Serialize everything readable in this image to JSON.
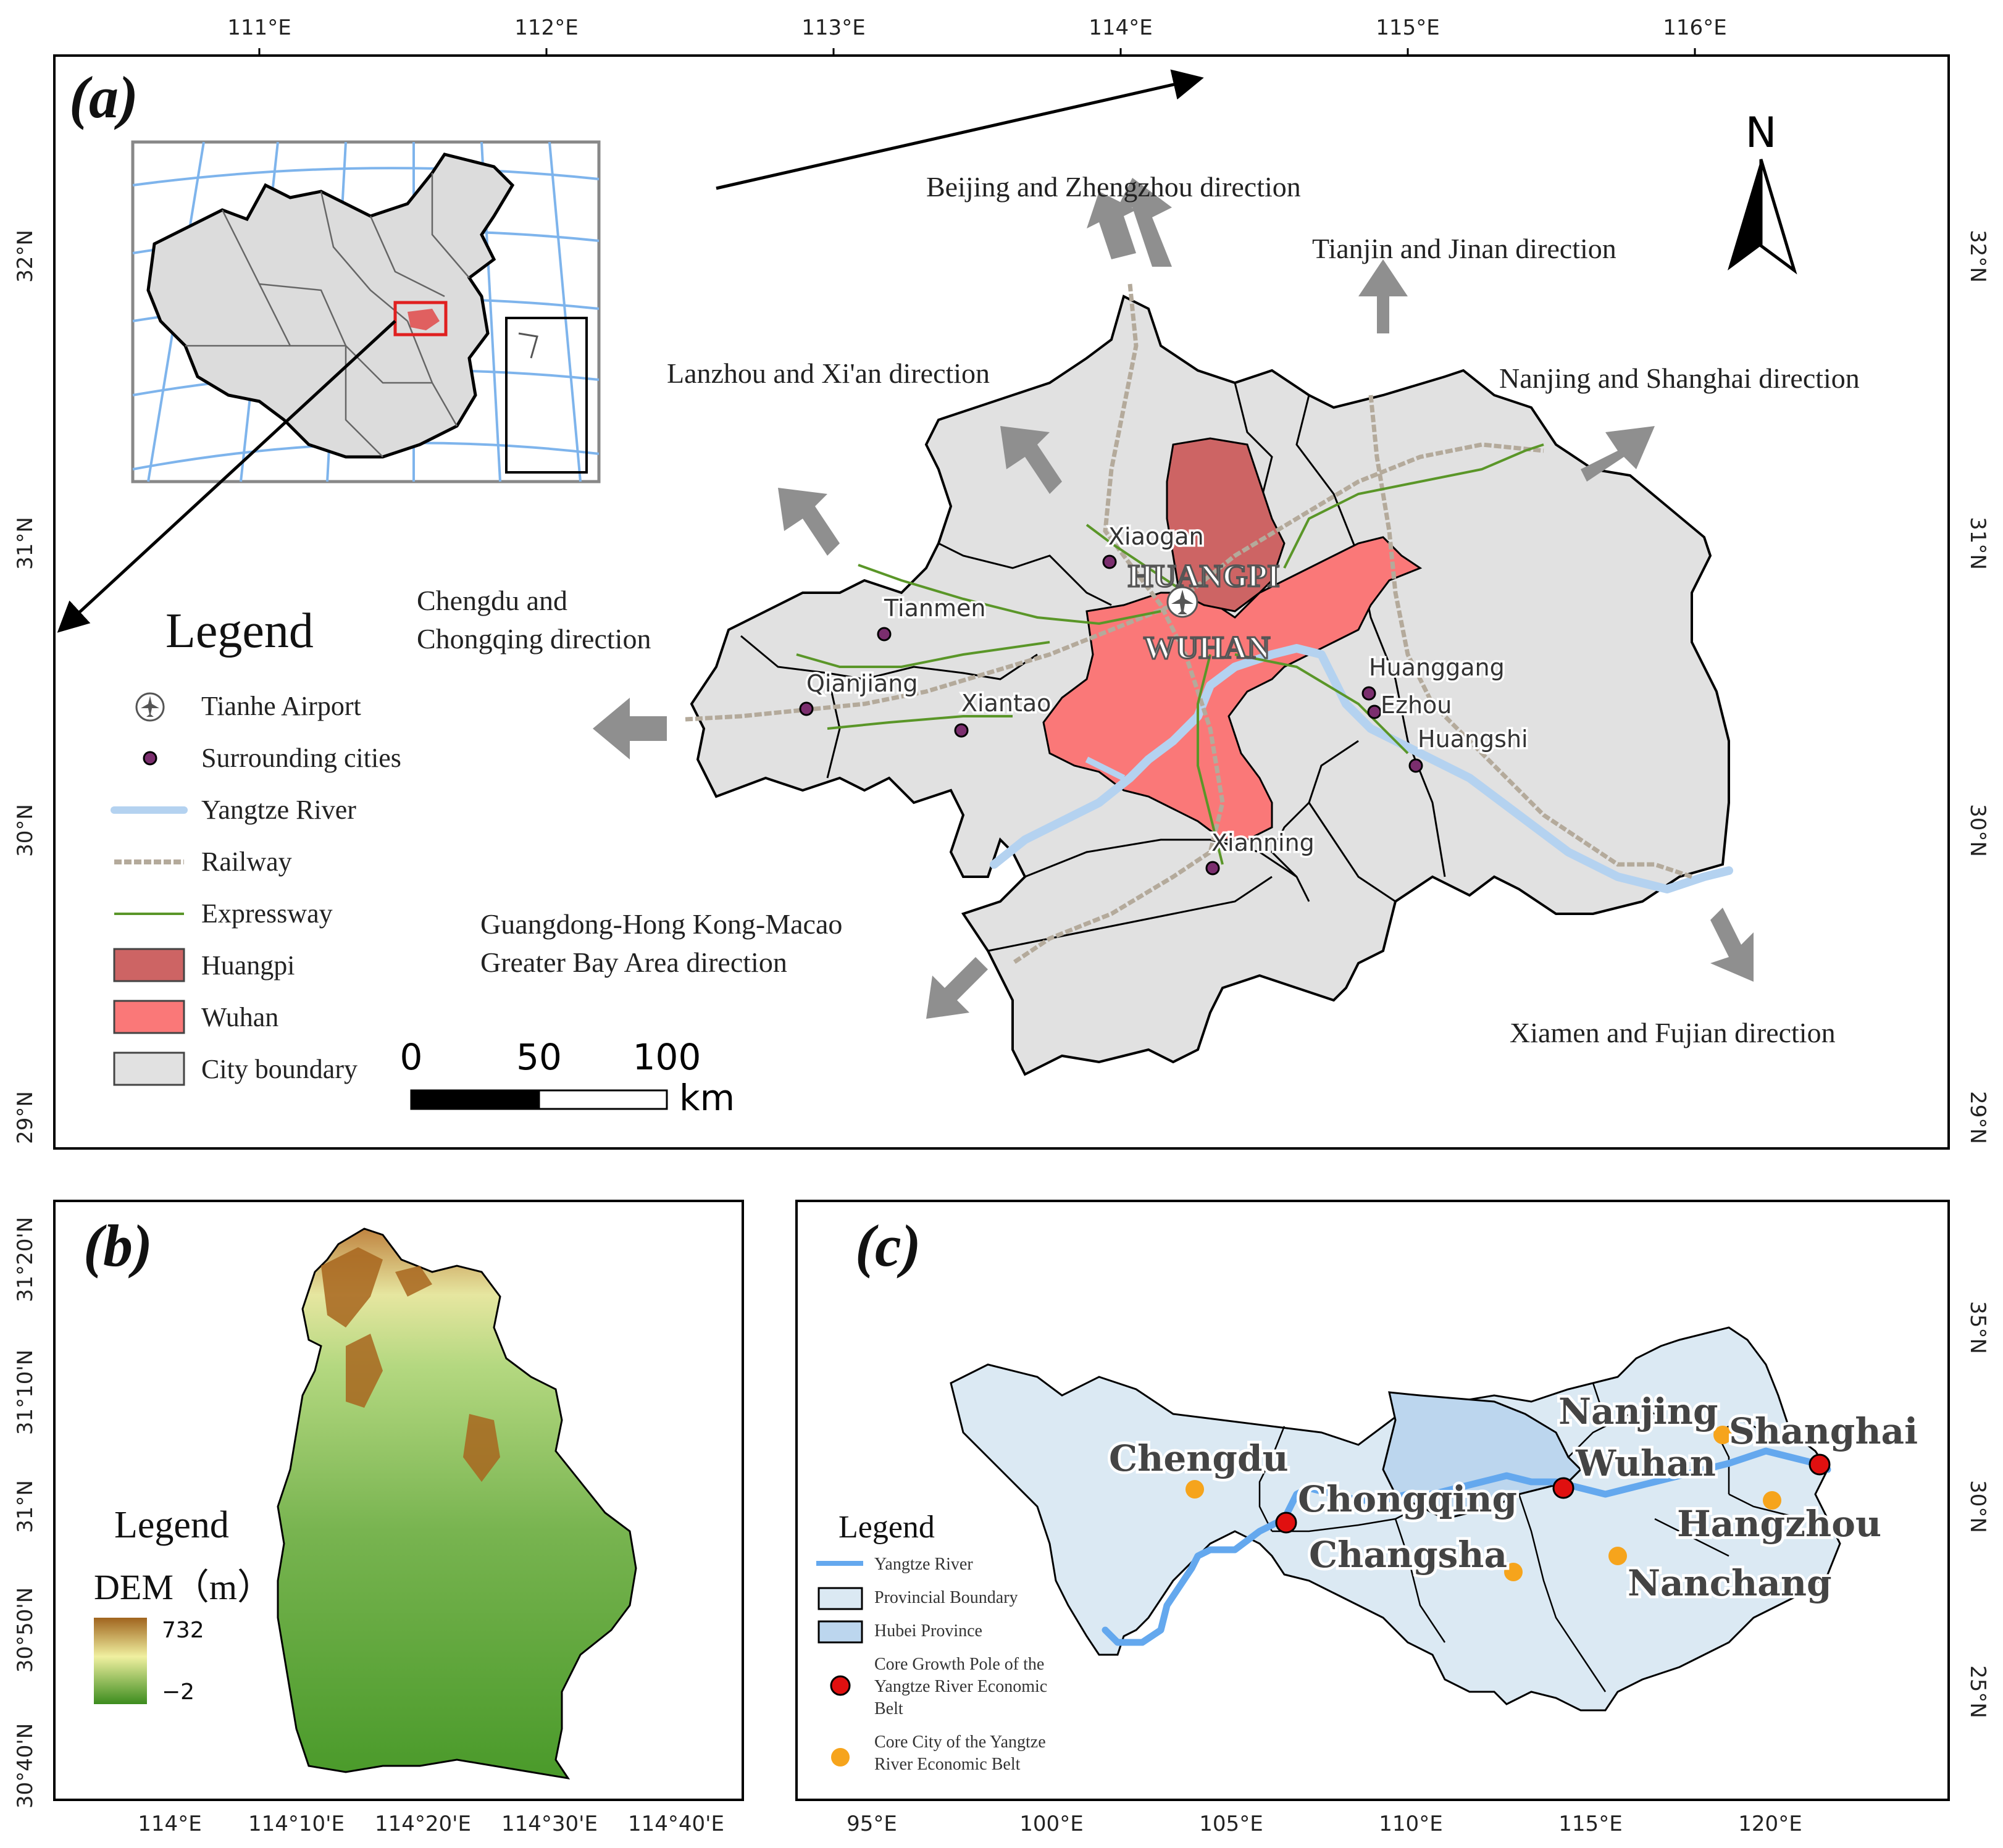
{
  "panel_a": {
    "label": "(a)",
    "lon_ticks": [
      "111°E",
      "112°E",
      "113°E",
      "114°E",
      "115°E",
      "116°E"
    ],
    "lat_ticks": [
      "32°N",
      "31°N",
      "30°N",
      "29°N"
    ],
    "north": "N",
    "directions": {
      "beijing": "Beijing and Zhengzhou direction",
      "tianjin": "Tianjin and Jinan direction",
      "lanzhou": "Lanzhou and Xi'an direction",
      "nanjing": "Nanjing and Shanghai direction",
      "chengdu_1": "Chengdu and",
      "chengdu_2": "Chongqing direction",
      "guangdong_1": "Guangdong-Hong Kong-Macao",
      "guangdong_2": "Greater Bay Area direction",
      "xiamen": "Xiamen and Fujian direction"
    },
    "cities": {
      "xiaogan": "Xiaogan",
      "tianmen": "Tianmen",
      "qianjiang": "Qianjiang",
      "xiantao": "Xiantao",
      "huanggang": "Huanggang",
      "ezhou": "Ezhou",
      "huangshi": "Huangshi",
      "xianning": "Xianning"
    },
    "district_labels": {
      "huangpi": "HUANGPI",
      "wuhan": "WUHAN"
    },
    "legend": {
      "title": "Legend",
      "items": [
        "Tianhe Airport",
        "Surrounding cities",
        "Yangtze River",
        "Railway",
        "Expressway",
        "Huangpi",
        "Wuhan",
        "City boundary"
      ]
    },
    "scalebar": {
      "t0": "0",
      "t50": "50",
      "t100": "100",
      "unit": "km"
    },
    "colors": {
      "huangpi": "#cd6464",
      "wuhan": "#fa7878",
      "city_boundary": "#e1e1e1",
      "yangtze": "#b4d2f0",
      "railway": "#b4aa9b",
      "expressway": "#5a9628",
      "surrounding_city": "#7b2e6e"
    }
  },
  "panel_b": {
    "label": "(b)",
    "lon_ticks": [
      "114°E",
      "114°10'E",
      "114°20'E",
      "114°30'E",
      "114°40'E"
    ],
    "lat_ticks": [
      "31°20'N",
      "31°10'N",
      "31°N",
      "30°50'N",
      "30°40'N"
    ],
    "legend_title": "Legend",
    "dem_label": "DEM（m）",
    "dem_max": "732",
    "dem_min": "−2",
    "colors": {
      "dem_high": "#a0641e",
      "dem_mid": "#f0f0a0",
      "dem_low": "#3c8c1e"
    }
  },
  "panel_c": {
    "label": "(c)",
    "lon_ticks": [
      "95°E",
      "100°E",
      "105°E",
      "110°E",
      "115°E",
      "120°E"
    ],
    "lat_ticks": [
      "35°N",
      "30°N",
      "25°N"
    ],
    "cities": {
      "chengdu": "Chengdu",
      "chongqing": "Chongqing",
      "changsha": "Changsha",
      "nanjing": "Nanjing",
      "wuhan": "Wuhan",
      "shanghai": "Shanghai",
      "hangzhou": "Hangzhou",
      "nanchang": "Nanchang"
    },
    "legend": {
      "title": "Legend",
      "yangtze": "Yangtze River",
      "provincial": "Provincial Boundary",
      "hubei": "Hubei Province",
      "core_pole_1": "Core Growth Pole of the",
      "core_pole_2": "Yangtze River Economic",
      "core_pole_3": "Belt",
      "core_city_1": "Core City of the Yangtze",
      "core_city_2": "River Economic Belt"
    },
    "colors": {
      "province": "#dbe9f3",
      "hubei": "#bcd6ee",
      "river": "#64a8ee",
      "core_pole": "#e01010",
      "core_city": "#f6a41c"
    }
  }
}
